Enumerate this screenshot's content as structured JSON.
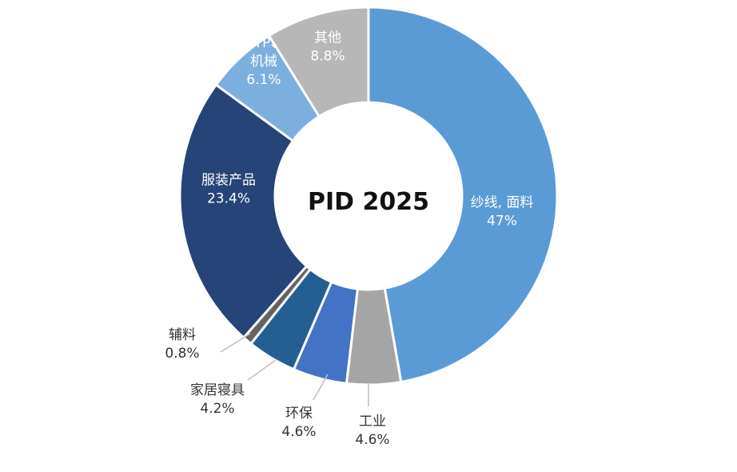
{
  "chart_data": {
    "type": "pie",
    "title": "PID 2025",
    "slices": [
      {
        "label": "纱线, 面料",
        "value": 47,
        "value_text": "47%",
        "color": "#5b9bd5",
        "label_inside": true
      },
      {
        "label": "工业",
        "value": 4.6,
        "value_text": "4.6%",
        "color": "#a5a5a5",
        "label_inside": false
      },
      {
        "label": "环保",
        "value": 4.6,
        "value_text": "4.6%",
        "color": "#4472c4",
        "label_inside": false
      },
      {
        "label": "家居寝具",
        "value": 4.2,
        "value_text": "4.2%",
        "color": "#255e91",
        "label_inside": false
      },
      {
        "label": "辅料",
        "value": 0.8,
        "value_text": "0.8%",
        "color": "#636363",
        "label_inside": false
      },
      {
        "label": "服装产品",
        "value": 23.4,
        "value_text": "23.4%",
        "color": "#264478",
        "label_inside": true
      },
      {
        "label": "DTP、机械",
        "label_lines": [
          "DTP、",
          "机械"
        ],
        "value": 6.1,
        "value_text": "6.1%",
        "color": "#7cafdd",
        "label_inside": true
      },
      {
        "label": "其他",
        "value": 8.8,
        "value_text": "8.8%",
        "color": "#b7b7b7",
        "label_inside": true
      }
    ]
  }
}
